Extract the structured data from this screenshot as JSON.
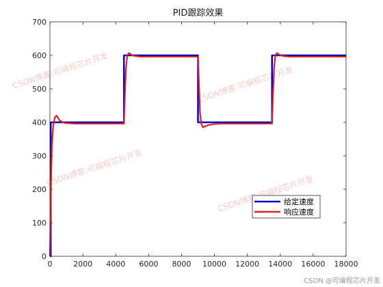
{
  "chart_data": {
    "type": "line",
    "title": "PID跟踪效果",
    "xlabel": "",
    "ylabel": "",
    "xlim": [
      0,
      18000
    ],
    "ylim": [
      0,
      700
    ],
    "xticks": [
      0,
      2000,
      4000,
      6000,
      8000,
      10000,
      12000,
      14000,
      16000,
      18000
    ],
    "yticks": [
      0,
      100,
      200,
      300,
      400,
      500,
      600,
      700
    ],
    "grid": false,
    "legend_position": "lower-right",
    "series": [
      {
        "name": "给定速度",
        "color": "#0000cc",
        "x": [
          0,
          50,
          50,
          4500,
          4500,
          9000,
          9000,
          13500,
          13500,
          18000
        ],
        "y": [
          0,
          0,
          400,
          400,
          600,
          600,
          400,
          400,
          600,
          600
        ]
      },
      {
        "name": "响应速度",
        "color": "#e02020",
        "x": [
          0,
          60,
          120,
          200,
          300,
          400,
          600,
          900,
          1500,
          4500,
          4550,
          4620,
          4700,
          4800,
          4950,
          5150,
          5500,
          6000,
          9000,
          9050,
          9120,
          9200,
          9300,
          9450,
          9650,
          10000,
          10500,
          13500,
          13550,
          13620,
          13700,
          13800,
          13950,
          14150,
          14500,
          15000,
          18000
        ],
        "y": [
          0,
          200,
          330,
          390,
          415,
          420,
          405,
          398,
          396,
          396,
          470,
          560,
          600,
          607,
          602,
          598,
          596,
          596,
          596,
          530,
          430,
          395,
          385,
          388,
          392,
          395,
          396,
          396,
          470,
          560,
          600,
          607,
          602,
          598,
          596,
          596,
          596
        ]
      }
    ]
  },
  "watermarks": [
    "CSDN博客:可编程芯片开发",
    "CSDN博客:可编程芯片开发",
    "CSDN博客:可编程芯片开发",
    "CSDN博客:可编程芯片开发"
  ],
  "credit": "CSDN @可编程芯片开发"
}
